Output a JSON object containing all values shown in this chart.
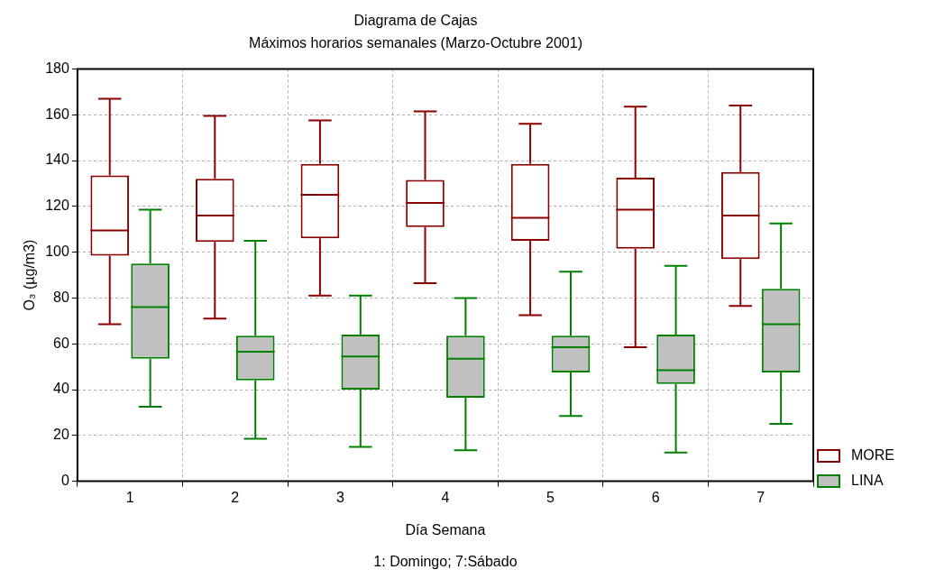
{
  "chart_data": {
    "type": "box",
    "title": "Diagrama de Cajas",
    "subtitle": "Máximos horarios semanales (Marzo-Octubre 2001)",
    "xlabel": "Día Semana",
    "ylabel": "O₃ (µg/m3)",
    "annotations": [
      "1: Domingo; 7:Sábado"
    ],
    "categories": [
      "1",
      "2",
      "3",
      "4",
      "5",
      "6",
      "7"
    ],
    "series": [
      {
        "name": "MORE",
        "color": "#8b0000",
        "boxes": [
          {
            "low": 68.5,
            "q1": 98.5,
            "median": 109.5,
            "q3": 133.5,
            "high": 167
          },
          {
            "low": 71,
            "q1": 104.5,
            "median": 116,
            "q3": 132,
            "high": 159.5
          },
          {
            "low": 81,
            "q1": 106,
            "median": 125,
            "q3": 138.5,
            "high": 157.5
          },
          {
            "low": 86.5,
            "q1": 111,
            "median": 121.5,
            "q3": 131.5,
            "high": 161.5
          },
          {
            "low": 72.5,
            "q1": 105,
            "median": 115,
            "q3": 138.5,
            "high": 156
          },
          {
            "low": 58.5,
            "q1": 101.5,
            "median": 118.5,
            "q3": 132.5,
            "high": 163.5
          },
          {
            "low": 76.5,
            "q1": 97,
            "median": 116,
            "q3": 135,
            "high": 164
          }
        ]
      },
      {
        "name": "LINA",
        "color": "#008000",
        "boxes": [
          {
            "low": 32.5,
            "q1": 53.5,
            "median": 76,
            "q3": 95,
            "high": 118.5
          },
          {
            "low": 18.5,
            "q1": 44,
            "median": 56.5,
            "q3": 63.5,
            "high": 105
          },
          {
            "low": 15,
            "q1": 40,
            "median": 54.5,
            "q3": 64,
            "high": 81
          },
          {
            "low": 13.5,
            "q1": 36.5,
            "median": 53.5,
            "q3": 63.5,
            "high": 80
          },
          {
            "low": 28.5,
            "q1": 47.5,
            "median": 58.5,
            "q3": 63.5,
            "high": 91.5
          },
          {
            "low": 12.5,
            "q1": 42.5,
            "median": 48.5,
            "q3": 64,
            "high": 94
          },
          {
            "low": 25,
            "q1": 47.5,
            "median": 68.5,
            "q3": 84,
            "high": 112.5
          }
        ]
      }
    ],
    "ylim": [
      0,
      180
    ],
    "yticks": [
      0,
      20,
      40,
      60,
      80,
      100,
      120,
      140,
      160,
      180
    ],
    "grid": true,
    "legend": "right"
  }
}
